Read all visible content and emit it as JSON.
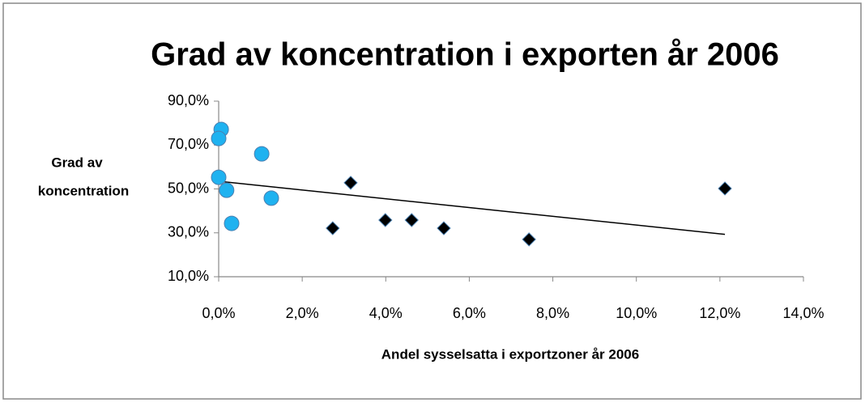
{
  "chart_data": {
    "type": "scatter",
    "title": "Grad av koncentration i exporten år 2006",
    "x_label": "Andel sysselsatta i exportzoner år 2006",
    "y_label": [
      "Grad av",
      "koncentration"
    ],
    "xlim": [
      0,
      14
    ],
    "ylim": [
      10,
      90
    ],
    "xticks": [
      {
        "value": 0,
        "label": "0,0%"
      },
      {
        "value": 2,
        "label": "2,0%"
      },
      {
        "value": 4,
        "label": "4,0%"
      },
      {
        "value": 6,
        "label": "6,0%"
      },
      {
        "value": 8,
        "label": "8,0%"
      },
      {
        "value": 10,
        "label": "10,0%"
      },
      {
        "value": 12,
        "label": "12,0%"
      },
      {
        "value": 14,
        "label": "14,0%"
      }
    ],
    "yticks": [
      {
        "value": 10,
        "label": "10,0%"
      },
      {
        "value": 30,
        "label": "30,0%"
      },
      {
        "value": 50,
        "label": "50,0%"
      },
      {
        "value": 70,
        "label": "70,0%"
      },
      {
        "value": 90,
        "label": "90,0%"
      }
    ],
    "series": [
      {
        "marker": "circle",
        "color": "#1fb2f0",
        "x": [
          0.06,
          0.0,
          1.03,
          0.0,
          0.19,
          1.26,
          0.31
        ],
        "y": [
          77.1,
          73.0,
          66.0,
          55.3,
          49.4,
          45.8,
          34.3
        ]
      },
      {
        "marker": "diamond",
        "color": "#000000",
        "x": [
          3.16,
          2.73,
          3.99,
          4.62,
          5.39,
          7.43,
          12.12
        ],
        "y": [
          52.8,
          32.1,
          35.8,
          35.8,
          32.1,
          27.0,
          50.2
        ]
      }
    ],
    "trendline": {
      "color": "#000000",
      "x": [
        0,
        12.12
      ],
      "y": [
        53.5,
        29.3
      ]
    }
  }
}
